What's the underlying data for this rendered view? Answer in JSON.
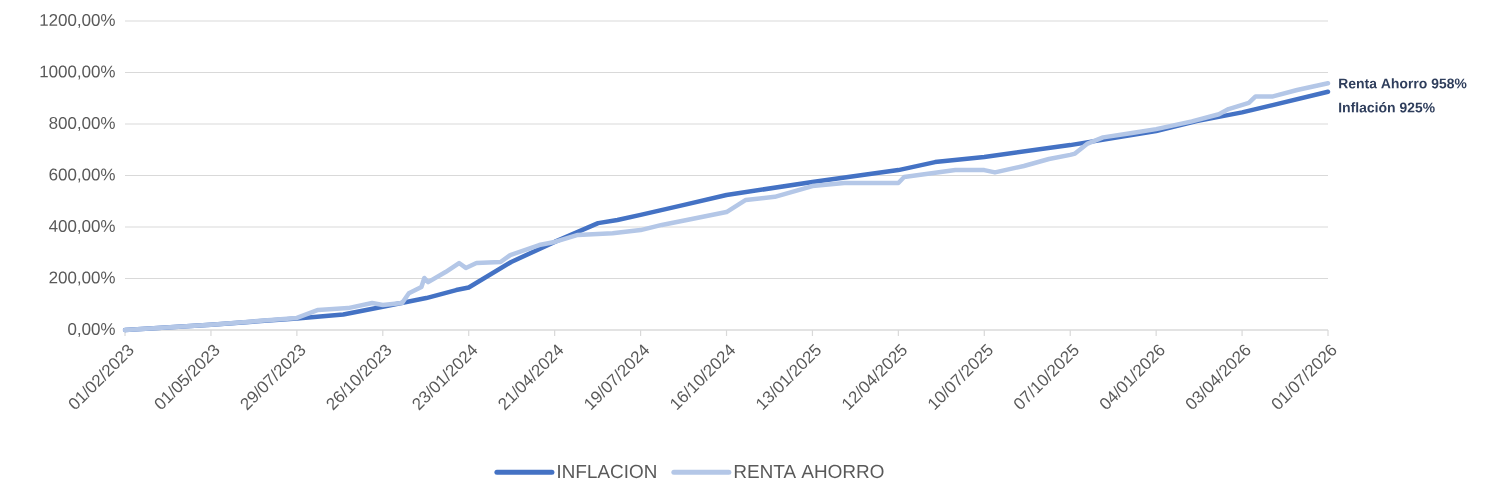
{
  "chart_data": {
    "type": "line",
    "xlim": [
      "2023-02-01",
      "2026-07-01"
    ],
    "xticks": [
      {
        "value": "2023-02-01",
        "label": "01/02/2023"
      },
      {
        "value": "2023-05-01",
        "label": "01/05/2023"
      },
      {
        "value": "2023-07-29",
        "label": "29/07/2023"
      },
      {
        "value": "2023-10-26",
        "label": "26/10/2023"
      },
      {
        "value": "2024-01-23",
        "label": "23/01/2024"
      },
      {
        "value": "2024-04-21",
        "label": "21/04/2024"
      },
      {
        "value": "2024-07-19",
        "label": "19/07/2024"
      },
      {
        "value": "2024-10-16",
        "label": "16/10/2024"
      },
      {
        "value": "2025-01-13",
        "label": "13/01/2025"
      },
      {
        "value": "2025-04-12",
        "label": "12/04/2025"
      },
      {
        "value": "2025-07-10",
        "label": "10/07/2025"
      },
      {
        "value": "2025-10-07",
        "label": "07/10/2025"
      },
      {
        "value": "2026-01-04",
        "label": "04/01/2026"
      },
      {
        "value": "2026-04-03",
        "label": "03/04/2026"
      },
      {
        "value": "2026-07-01",
        "label": "01/07/2026"
      }
    ],
    "ylim": [
      0,
      1200
    ],
    "yticks": [
      {
        "value": 0,
        "label": "0,00%"
      },
      {
        "value": 200,
        "label": "200,00%"
      },
      {
        "value": 400,
        "label": "400,00%"
      },
      {
        "value": 600,
        "label": "600,00%"
      },
      {
        "value": 800,
        "label": "800,00%"
      },
      {
        "value": 1000,
        "label": "1000,00%"
      },
      {
        "value": 1200,
        "label": "1200,00%"
      }
    ],
    "grid": "y",
    "legend": "bottom",
    "marker": "none",
    "line_style": "solid",
    "series": [
      {
        "name": "INFLACION",
        "color": "#4472c4",
        "x": [
          "2023-02-01",
          "2023-05-01",
          "2023-07-29",
          "2023-09-15",
          "2023-10-26",
          "2023-12-10",
          "2024-01-10",
          "2024-01-23",
          "2024-03-07",
          "2024-04-21",
          "2024-06-05",
          "2024-06-25",
          "2024-07-19",
          "2024-09-01",
          "2024-10-16",
          "2025-01-13",
          "2025-04-12",
          "2025-05-20",
          "2025-07-10",
          "2025-10-07",
          "2026-01-04",
          "2026-02-15",
          "2026-04-03",
          "2026-07-01"
        ],
        "values": [
          0,
          20,
          45,
          60,
          90,
          124,
          155,
          165,
          264,
          342,
          415,
          427,
          447,
          485,
          524,
          575,
          621,
          652,
          672,
          718,
          773,
          811,
          845,
          925
        ]
      },
      {
        "name": "RENTA AHORRO",
        "color": "#b4c7e7",
        "x": [
          "2023-02-01",
          "2023-05-01",
          "2023-07-29",
          "2023-08-20",
          "2023-09-20",
          "2023-10-15",
          "2023-10-26",
          "2023-11-15",
          "2023-11-22",
          "2023-12-05",
          "2023-12-08",
          "2023-12-12",
          "2023-12-30",
          "2024-01-13",
          "2024-01-20",
          "2024-01-31",
          "2024-02-25",
          "2024-03-06",
          "2024-04-05",
          "2024-04-21",
          "2024-05-15",
          "2024-06-20",
          "2024-07-19",
          "2024-08-10",
          "2024-09-10",
          "2024-10-16",
          "2024-11-05",
          "2024-12-05",
          "2025-01-13",
          "2025-02-15",
          "2025-04-12",
          "2025-04-18",
          "2025-06-10",
          "2025-07-10",
          "2025-07-21",
          "2025-08-20",
          "2025-09-15",
          "2025-10-07",
          "2025-10-12",
          "2025-10-25",
          "2025-11-10",
          "2025-12-10",
          "2026-01-04",
          "2026-02-10",
          "2026-03-10",
          "2026-03-20",
          "2026-04-10",
          "2026-04-17",
          "2026-05-05",
          "2026-05-30",
          "2026-07-01"
        ],
        "values": [
          0,
          20,
          47,
          78,
          85,
          105,
          97,
          105,
          143,
          167,
          202,
          186,
          225,
          260,
          241,
          260,
          264,
          291,
          330,
          342,
          369,
          376,
          388,
          408,
          431,
          458,
          505,
          517,
          559,
          571,
          571,
          594,
          621,
          621,
          612,
          637,
          664,
          680,
          685,
          724,
          748,
          765,
          780,
          810,
          838,
          858,
          882,
          907,
          907,
          932,
          958
        ]
      }
    ],
    "annotations": [
      {
        "text": "Renta Ahorro 958%",
        "x": "2026-07-01",
        "y": 958
      },
      {
        "text": "Inflación 925%",
        "x": "2026-07-01",
        "y": 925
      }
    ]
  }
}
